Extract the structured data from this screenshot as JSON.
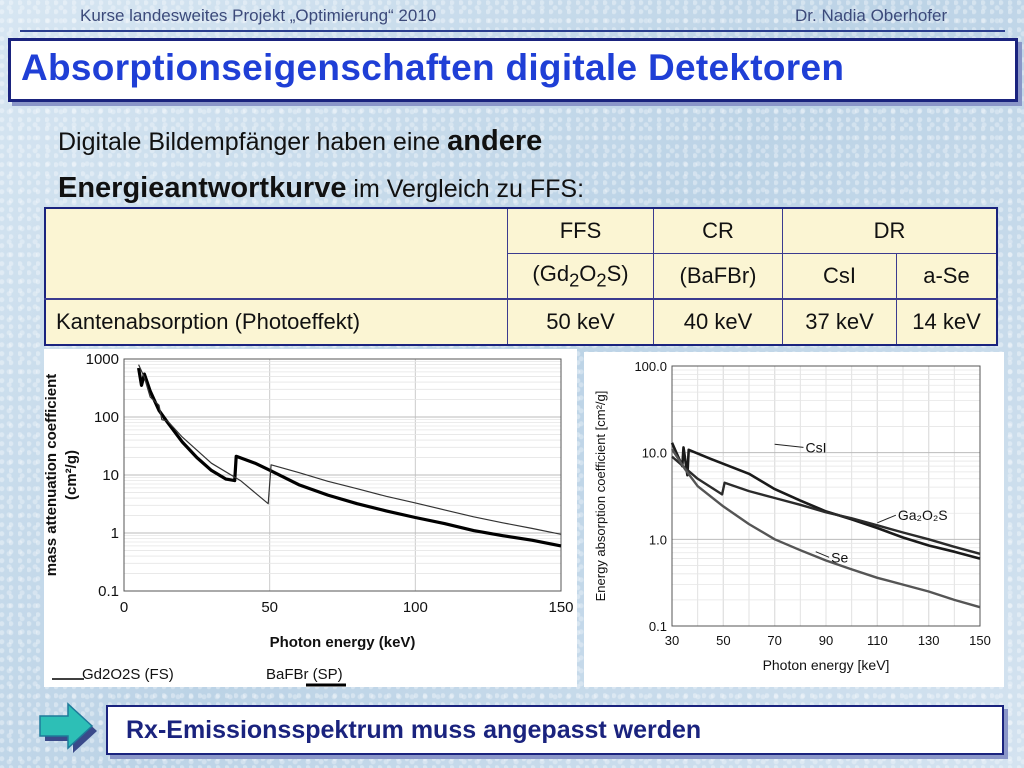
{
  "header": {
    "left_text": "Kurse landesweites Projekt „Optimierung“ 2010",
    "right_text": "Dr. Nadia Oberhofer"
  },
  "title": "Absorptionseigenschaften digitale Detektoren",
  "subtitle": {
    "part1": "Digitale Bildempfänger haben eine ",
    "bold1": "andere",
    "bold2": "Energieantwortkurve",
    "part2": " im Vergleich zu FFS:"
  },
  "table": {
    "head_ffs": "FFS",
    "head_cr": "CR",
    "head_dr": "DR",
    "sub_ffs_pre": "(Gd",
    "sub_ffs_s1": "2",
    "sub_ffs_mid": "O",
    "sub_ffs_s2": "2",
    "sub_ffs_post": "S)",
    "sub_cr": "(BaFBr)",
    "sub_csi": "CsI",
    "sub_ase": "a-Se",
    "row_label": "Kantenabsorption (Photoeffekt)",
    "values": [
      "50 keV",
      "40 keV",
      "37 keV",
      "14 keV"
    ]
  },
  "chart_data": [
    {
      "type": "line",
      "xlabel": "Photon energy (keV)",
      "ylabel": "mass attenuation coefficient",
      "ylabel_unit": "(cm²/g)",
      "y_scale": "log",
      "xlim": [
        0,
        150
      ],
      "ylim": [
        0.1,
        1000
      ],
      "x_ticks": [
        "0",
        "50",
        "100",
        "150"
      ],
      "y_ticks": [
        "0.1",
        "1",
        "10",
        "100",
        "1000"
      ],
      "grid": true,
      "series": [
        {
          "name": "Gd2O2S (FS)",
          "style": "thick",
          "points": [
            [
              5,
              700
            ],
            [
              6,
              350
            ],
            [
              7,
              550
            ],
            [
              9,
              280
            ],
            [
              12,
              130
            ],
            [
              15,
              80
            ],
            [
              20,
              37
            ],
            [
              25,
              20
            ],
            [
              30,
              12
            ],
            [
              35,
              8.5
            ],
            [
              38,
              8
            ],
            [
              38.5,
              21
            ],
            [
              45,
              16
            ],
            [
              50.2,
              12
            ],
            [
              60,
              6.8
            ],
            [
              70,
              4.5
            ],
            [
              80,
              3.2
            ],
            [
              90,
              2.4
            ],
            [
              100,
              1.85
            ],
            [
              110,
              1.45
            ],
            [
              120,
              1.1
            ],
            [
              130,
              0.9
            ],
            [
              140,
              0.75
            ],
            [
              150,
              0.6
            ]
          ]
        },
        {
          "name": "BaFBr (SP)",
          "style": "thin",
          "points": [
            [
              5,
              800
            ],
            [
              7,
              480
            ],
            [
              9,
              220
            ],
            [
              12,
              160
            ],
            [
              13,
              90
            ],
            [
              15,
              85
            ],
            [
              20,
              45
            ],
            [
              30,
              16
            ],
            [
              40,
              8
            ],
            [
              49.5,
              3.2
            ],
            [
              50.5,
              15
            ],
            [
              60,
              11
            ],
            [
              70,
              7.8
            ],
            [
              80,
              5.8
            ],
            [
              90,
              4.3
            ],
            [
              100,
              3.3
            ],
            [
              110,
              2.5
            ],
            [
              120,
              1.9
            ],
            [
              130,
              1.5
            ],
            [
              140,
              1.2
            ],
            [
              150,
              0.95
            ]
          ]
        }
      ]
    },
    {
      "type": "line",
      "xlabel": "Photon energy [keV]",
      "ylabel": "Energy absorption coefficient [cm²/g]",
      "y_scale": "log",
      "xlim": [
        30,
        150
      ],
      "ylim": [
        0.1,
        100
      ],
      "x_ticks": [
        "30",
        "50",
        "70",
        "90",
        "110",
        "130",
        "150"
      ],
      "y_ticks": [
        "0.1",
        "1.0",
        "10.0",
        "100.0"
      ],
      "grid": true,
      "series": [
        {
          "name": "CsI",
          "points": [
            [
              30,
              13
            ],
            [
              34,
              7
            ],
            [
              34.5,
              11.5
            ],
            [
              36,
              5.5
            ],
            [
              36.5,
              10.8
            ],
            [
              45,
              8.5
            ],
            [
              60,
              5.7
            ],
            [
              70,
              3.8
            ],
            [
              80,
              2.8
            ],
            [
              90,
              2.1
            ],
            [
              100,
              1.7
            ],
            [
              110,
              1.35
            ],
            [
              120,
              1.05
            ],
            [
              130,
              0.85
            ],
            [
              140,
              0.72
            ],
            [
              150,
              0.6
            ]
          ]
        },
        {
          "name": "Ga₂O₂S",
          "points": [
            [
              30,
              9
            ],
            [
              40,
              5
            ],
            [
              49.5,
              3.3
            ],
            [
              50.5,
              4.5
            ],
            [
              60,
              3.6
            ],
            [
              70,
              3.0
            ],
            [
              80,
              2.5
            ],
            [
              90,
              2.05
            ],
            [
              100,
              1.75
            ],
            [
              110,
              1.45
            ],
            [
              120,
              1.2
            ],
            [
              130,
              1.0
            ],
            [
              140,
              0.82
            ],
            [
              150,
              0.68
            ]
          ]
        },
        {
          "name": "Se",
          "points": [
            [
              30,
              11
            ],
            [
              35,
              6.5
            ],
            [
              40,
              4.1
            ],
            [
              50,
              2.4
            ],
            [
              60,
              1.5
            ],
            [
              70,
              1.0
            ],
            [
              80,
              0.75
            ],
            [
              90,
              0.57
            ],
            [
              100,
              0.45
            ],
            [
              110,
              0.36
            ],
            [
              120,
              0.3
            ],
            [
              130,
              0.25
            ],
            [
              140,
              0.2
            ],
            [
              150,
              0.165
            ]
          ]
        }
      ]
    }
  ],
  "legend_left": {
    "item1": "Gd2O2S (FS)",
    "item2": "BaFBr (SP)"
  },
  "footer": "Rx-Emissionsspektrum muss angepasst werden",
  "colors": {
    "title_blue": "#1f3fd6",
    "border_navy": "#1a237e",
    "table_bg": "#fbf5d3"
  }
}
